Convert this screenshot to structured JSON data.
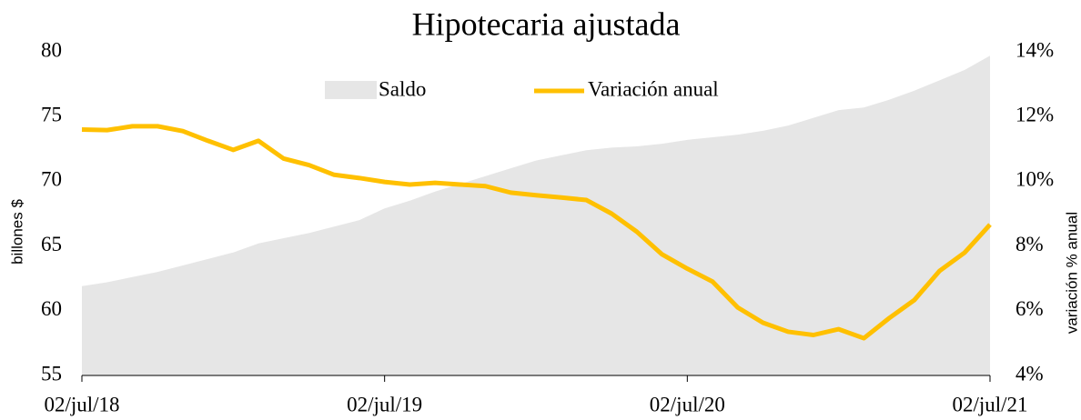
{
  "chart_data": {
    "type": "line",
    "title": "Hipotecaria ajustada",
    "y_label": "billones $",
    "y2_label": "variación % anual",
    "categories": [
      "02/jul/18",
      null,
      null,
      null,
      null,
      null,
      null,
      null,
      null,
      null,
      null,
      null,
      "02/jul/19",
      null,
      null,
      null,
      null,
      null,
      null,
      null,
      null,
      null,
      null,
      null,
      "02/jul/20",
      null,
      null,
      null,
      null,
      null,
      null,
      null,
      null,
      null,
      null,
      null,
      "02/jul/21"
    ],
    "series": [
      {
        "name": "Saldo",
        "type": "area",
        "color": "#e6e6e6",
        "values": [
          61.9,
          62.2,
          62.6,
          63.0,
          63.5,
          64.0,
          64.5,
          65.2,
          65.6,
          66.0,
          66.5,
          67.0,
          67.9,
          68.5,
          69.2,
          69.8,
          70.4,
          71.0,
          71.6,
          72.0,
          72.4,
          72.6,
          72.7,
          72.9,
          73.2,
          73.4,
          73.6,
          73.9,
          74.3,
          74.9,
          75.5,
          75.7,
          76.3,
          77.0,
          77.8,
          78.6,
          79.7
        ]
      },
      {
        "name": "Variación anual",
        "type": "line",
        "axis": "y2",
        "color": "#ffc000",
        "values": [
          11.6,
          11.58,
          11.7,
          11.7,
          11.55,
          11.25,
          10.97,
          11.25,
          10.7,
          10.5,
          10.2,
          10.1,
          9.98,
          9.9,
          9.95,
          9.9,
          9.85,
          9.65,
          9.57,
          9.5,
          9.42,
          9.0,
          8.44,
          7.74,
          7.3,
          6.9,
          6.1,
          5.63,
          5.35,
          5.25,
          5.43,
          5.15,
          5.77,
          6.33,
          7.23,
          7.8,
          8.66
        ]
      }
    ],
    "ylim": [
      55,
      80
    ],
    "yticks": [
      55,
      60,
      65,
      70,
      75,
      80
    ],
    "y2lim": [
      4,
      14
    ],
    "y2ticks": [
      {
        "value": 4,
        "label": "4%"
      },
      {
        "value": 6,
        "label": "6%"
      },
      {
        "value": 8,
        "label": "8%"
      },
      {
        "value": 10,
        "label": "10%"
      },
      {
        "value": 12,
        "label": "12%"
      },
      {
        "value": 14,
        "label": "14%"
      }
    ],
    "legend": "top"
  }
}
